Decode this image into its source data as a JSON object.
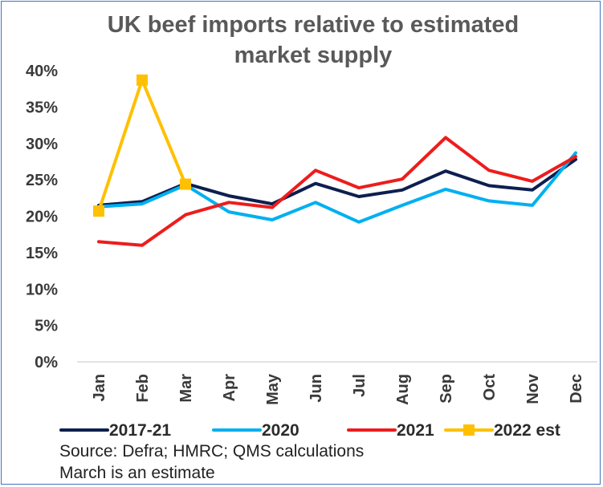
{
  "chart_data": {
    "type": "line",
    "title_lines": [
      "UK beef imports relative to estimated",
      "market supply"
    ],
    "categories": [
      "Jan",
      "Feb",
      "Mar",
      "Apr",
      "May",
      "Jun",
      "Jul",
      "Aug",
      "Sep",
      "Oct",
      "Nov",
      "Dec"
    ],
    "y_ticks": [
      "0%",
      "5%",
      "10%",
      "15%",
      "20%",
      "25%",
      "30%",
      "35%",
      "40%"
    ],
    "ylim": [
      0,
      40
    ],
    "y_unit": "%",
    "grid": false,
    "legend_position": "bottom",
    "series": [
      {
        "name": "2017-21",
        "color": "#0d1f4f",
        "marker": "none",
        "values": [
          21.5,
          22.0,
          24.5,
          22.8,
          21.7,
          24.5,
          22.7,
          23.6,
          26.2,
          24.2,
          23.6,
          27.8
        ]
      },
      {
        "name": "2020",
        "color": "#00b0f0",
        "marker": "none",
        "values": [
          21.3,
          21.7,
          24.3,
          20.6,
          19.5,
          21.9,
          19.2,
          21.5,
          23.7,
          22.1,
          21.5,
          28.7
        ]
      },
      {
        "name": "2021",
        "color": "#ee1c1c",
        "marker": "none",
        "values": [
          16.5,
          16.0,
          20.2,
          21.9,
          21.2,
          26.3,
          23.9,
          25.1,
          30.8,
          26.3,
          24.8,
          28.2
        ]
      },
      {
        "name": "2022 est",
        "color": "#ffc000",
        "marker": "square",
        "values": [
          20.7,
          38.7,
          24.4,
          null,
          null,
          null,
          null,
          null,
          null,
          null,
          null,
          null
        ]
      }
    ]
  },
  "notes": {
    "source": "Source: Defra; HMRC; QMS calculations",
    "estimate": "March is an estimate"
  }
}
